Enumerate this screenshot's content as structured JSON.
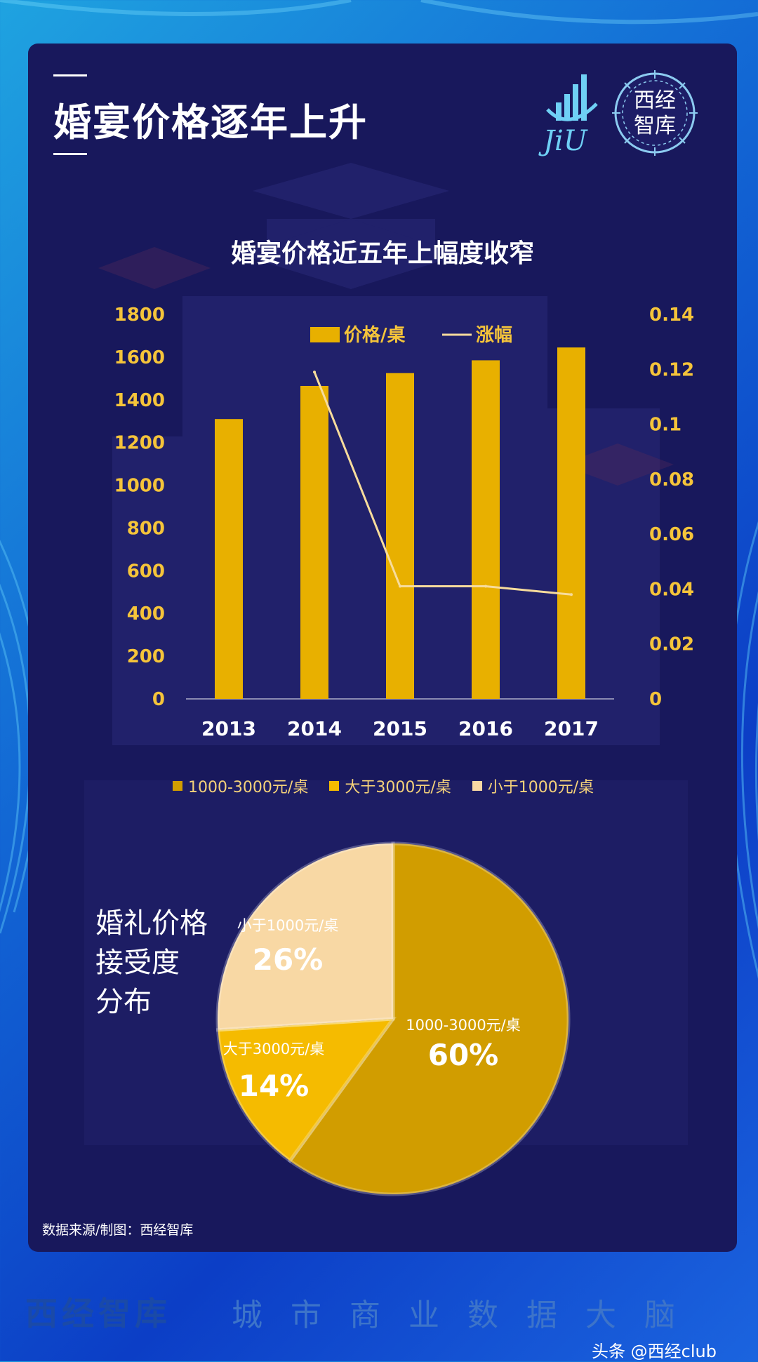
{
  "header": {
    "title": "婚宴价格逐年上升"
  },
  "logo": {
    "brand_latin": "JiU",
    "seal_text": "西经智库"
  },
  "chart_data": [
    {
      "type": "bar+line",
      "title": "婚宴价格近五年上幅度收窄",
      "categories": [
        "2013",
        "2014",
        "2015",
        "2016",
        "2017"
      ],
      "series": [
        {
          "name": "价格/桌",
          "type": "bar",
          "axis": "left",
          "color": "#e8b000",
          "values": [
            1310,
            1465,
            1525,
            1585,
            1645
          ]
        },
        {
          "name": "涨幅",
          "type": "line",
          "axis": "right",
          "color": "#f7dc9c",
          "values": [
            null,
            0.119,
            0.041,
            0.041,
            0.038
          ]
        }
      ],
      "y_left": {
        "min": 0,
        "max": 1800,
        "ticks": [
          "0",
          "200",
          "400",
          "600",
          "800",
          "1000",
          "1200",
          "1400",
          "1600",
          "1800"
        ]
      },
      "y_right": {
        "min": 0,
        "max": 0.14,
        "ticks": [
          "0",
          "0.02",
          "0.04",
          "0.06",
          "0.08",
          "0.1",
          "0.12",
          "0.14"
        ]
      },
      "legend": "top-center",
      "grid": false
    },
    {
      "type": "pie",
      "title": "婚礼价格接受度分布",
      "title_lines": [
        "婚礼价格",
        "接受度",
        "分布"
      ],
      "slices": [
        {
          "label": "1000-3000元/桌",
          "value": 60,
          "display": "60%",
          "color": "#d19d00",
          "text_color": "#ffffff"
        },
        {
          "label": "大于3000元/桌",
          "value": 14,
          "display": "14%",
          "color": "#f5bb00",
          "text_color": "#ffffff"
        },
        {
          "label": "小于1000元/桌",
          "value": 26,
          "display": "26%",
          "color": "#f8d8a4",
          "text_color": "#ffffff"
        }
      ],
      "legend": "top"
    }
  ],
  "footer": {
    "source": "数据来源/制图：西经智库",
    "brand": "西经智库",
    "slogan": "城市商业数据大脑",
    "watermark": "头条 @西经club"
  }
}
